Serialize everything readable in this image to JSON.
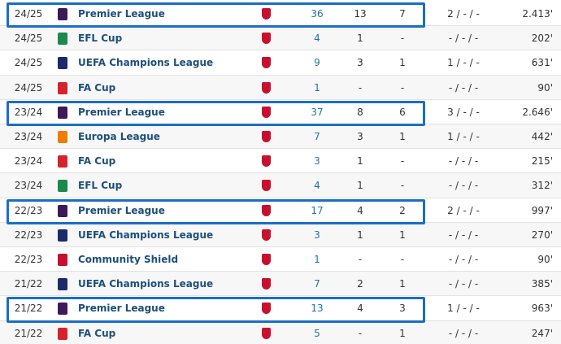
{
  "table": {
    "rows": [
      [
        "24/25",
        "Premier League",
        36,
        13,
        7,
        "2 / - / -",
        "2.413'"
      ],
      [
        "24/25",
        "EFL Cup",
        4,
        1,
        "-",
        "- / - / -",
        "202'"
      ],
      [
        "24/25",
        "UEFA Champions League",
        9,
        3,
        1,
        "1 / - / -",
        "631'"
      ],
      [
        "24/25",
        "FA Cup",
        1,
        "-",
        "-",
        "- / - / -",
        "90'"
      ],
      [
        "23/24",
        "Premier League",
        37,
        8,
        6,
        "3 / - / -",
        "2.646'"
      ],
      [
        "23/24",
        "Europa League",
        7,
        3,
        1,
        "1 / - / -",
        "442'"
      ],
      [
        "23/24",
        "FA Cup",
        3,
        1,
        "-",
        "- / - / -",
        "215'"
      ],
      [
        "23/24",
        "EFL Cup",
        4,
        1,
        "-",
        "- / - / -",
        "312'"
      ],
      [
        "22/23",
        "Premier League",
        17,
        4,
        2,
        "2 / - / -",
        "997'"
      ],
      [
        "22/23",
        "UEFA Champions League",
        3,
        1,
        1,
        "- / - / -",
        "270'"
      ],
      [
        "22/23",
        "Community Shield",
        1,
        "-",
        "-",
        "- / - / -",
        "90'"
      ],
      [
        "21/22",
        "UEFA Champions League",
        7,
        2,
        1,
        "- / - / -",
        "385'"
      ],
      [
        "21/22",
        "Premier League",
        13,
        4,
        3,
        "1 / - / -",
        "963'"
      ],
      [
        "21/22",
        "FA Cup",
        5,
        "-",
        1,
        "- / - / -",
        "247'"
      ]
    ]
  }
}
